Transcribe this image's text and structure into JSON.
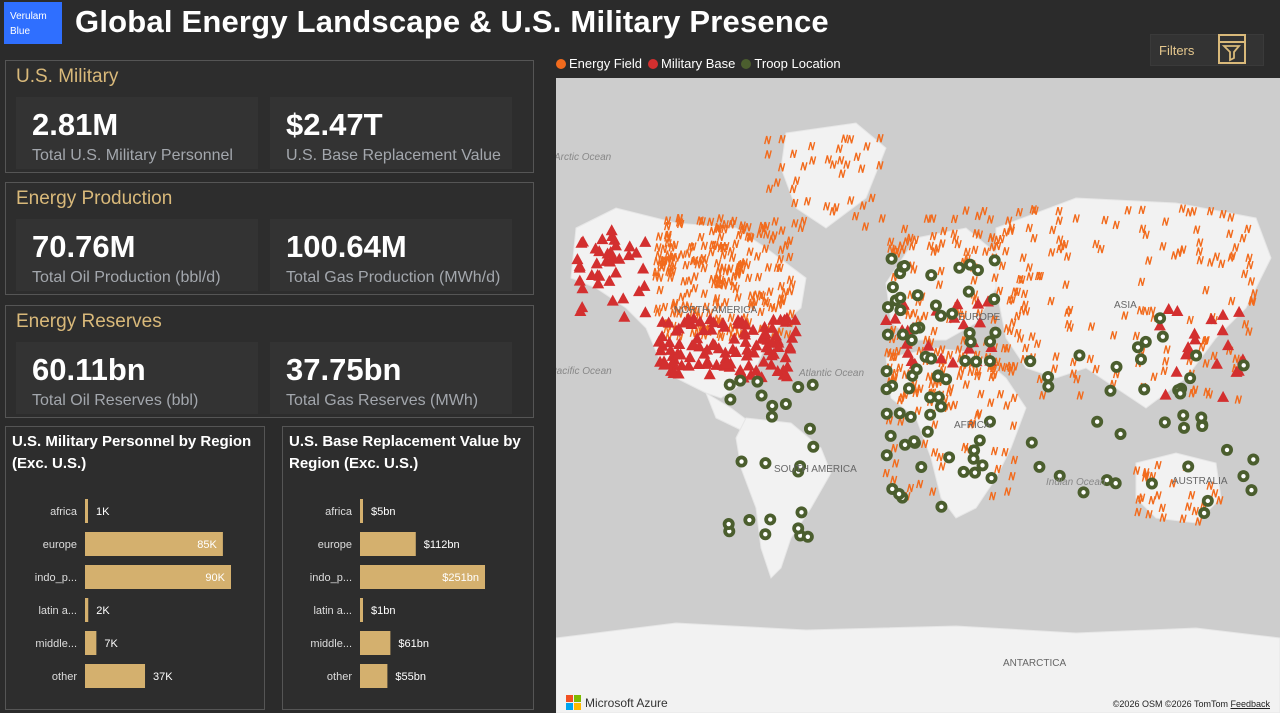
{
  "header": {
    "logo_text": "Verulam Blue",
    "title": "Global Energy Landscape & U.S. Military Presence",
    "filters_label": "Filters"
  },
  "legend": [
    {
      "label": "Energy Field",
      "color": "#f26b1d"
    },
    {
      "label": "Military Base",
      "color": "#d32f2f"
    },
    {
      "label": "Troop Location",
      "color": "#4b5e2e"
    }
  ],
  "panels": {
    "military": {
      "title": "U.S. Military",
      "kpis": [
        {
          "value": "2.81M",
          "label": "Total U.S. Military Personnel"
        },
        {
          "value": "$2.47T",
          "label": "U.S. Base Replacement Value"
        }
      ]
    },
    "production": {
      "title": "Energy Production",
      "kpis": [
        {
          "value": "70.76M",
          "label": "Total Oil Production (bbl/d)"
        },
        {
          "value": "100.64M",
          "label": "Total Gas Production (MWh/d)"
        }
      ]
    },
    "reserves": {
      "title": "Energy Reserves",
      "kpis": [
        {
          "value": "60.11bn",
          "label": "Total Oil Reserves (bbl)"
        },
        {
          "value": "37.75bn",
          "label": "Total Gas Reserves (MWh)"
        }
      ]
    }
  },
  "chart_data": [
    {
      "type": "bar",
      "orientation": "horizontal",
      "title": "U.S. Military Personnel by Region (Exc. U.S.)",
      "categories": [
        "africa",
        "europe",
        "indo_p...",
        "latin a...",
        "middle...",
        "other"
      ],
      "values": [
        1,
        85,
        90,
        2,
        7,
        37
      ],
      "unit": "K",
      "value_labels": [
        "1K",
        "85K",
        "90K",
        "2K",
        "7K",
        "37K"
      ],
      "bar_color": "#d4b06e"
    },
    {
      "type": "bar",
      "orientation": "horizontal",
      "title": "U.S. Base Replacement Value by Region (Exc. U.S.)",
      "categories": [
        "africa",
        "europe",
        "indo_p...",
        "latin a...",
        "middle...",
        "other"
      ],
      "values": [
        5,
        112,
        251,
        1,
        61,
        55
      ],
      "unit": "bn",
      "value_labels": [
        "$5bn",
        "$112bn",
        "$251bn",
        "$1bn",
        "$61bn",
        "$55bn"
      ],
      "bar_color": "#d4b06e"
    }
  ],
  "map": {
    "labels": [
      "Arctic Ocean",
      "NORTH AMERICA",
      "EUROPE",
      "ASIA",
      "Pacific Ocean",
      "Atlantic Ocean",
      "AFRICA",
      "SOUTH AMERICA",
      "Indian Ocean",
      "AUSTRALIA",
      "ANTARCTICA"
    ],
    "provider": "Microsoft Azure",
    "credits": "©2026 OSM  ©2026 TomTom",
    "feedback": "Feedback"
  }
}
